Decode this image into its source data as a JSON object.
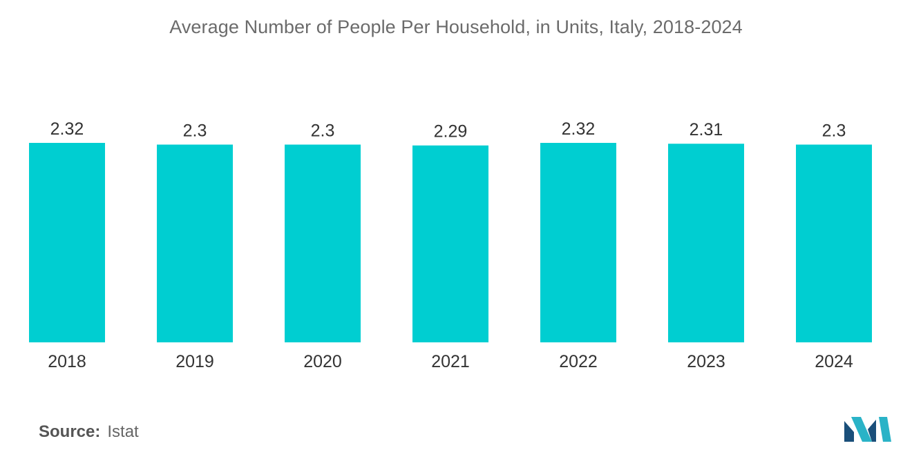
{
  "chart_data": {
    "type": "bar",
    "title": "Average Number of People Per Household, in Units, Italy, 2018-2024",
    "categories": [
      "2018",
      "2019",
      "2020",
      "2021",
      "2022",
      "2023",
      "2024"
    ],
    "values": [
      2.32,
      2.3,
      2.3,
      2.29,
      2.32,
      2.31,
      2.3
    ],
    "value_labels": [
      "2.32",
      "2.3",
      "2.3",
      "2.29",
      "2.32",
      "2.31",
      "2.3"
    ],
    "xlabel": "",
    "ylabel": "",
    "ylim": [
      0,
      2.32
    ],
    "grid": false,
    "bar_color": "#00CED1"
  },
  "source": {
    "label": "Source:",
    "value": "Istat"
  },
  "logo": {
    "icon": "mordor-intelligence-logo-icon",
    "colors": [
      "#1a4f7a",
      "#2ab3c7"
    ]
  }
}
